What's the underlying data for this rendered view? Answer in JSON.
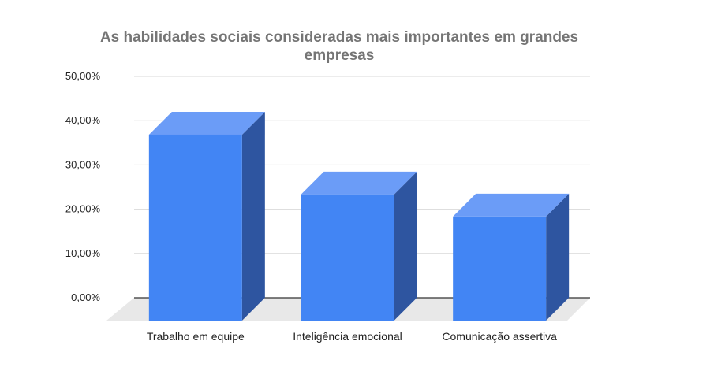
{
  "chart_data": {
    "type": "bar",
    "style": "3d",
    "title": "As habilidades sociais consideradas mais importantes em grandes empresas",
    "categories": [
      "Trabalho em equipe",
      "Inteligência emocional",
      "Comunicação assertiva"
    ],
    "values": [
      42.0,
      28.5,
      23.5
    ],
    "value_unit": "%",
    "ylim": [
      0,
      50
    ],
    "yticks": [
      "0,00%",
      "10,00%",
      "20,00%",
      "30,00%",
      "40,00%",
      "50,00%"
    ],
    "xlabel": "",
    "ylabel": "",
    "grid": true,
    "legend": "none",
    "colors": {
      "bar_front": "#4285f4",
      "bar_top": "#6b9cf7",
      "bar_side": "#2e55a0",
      "floor": "#e8e8e8",
      "gridline": "#d9d9d9",
      "axis": "#333333"
    }
  }
}
